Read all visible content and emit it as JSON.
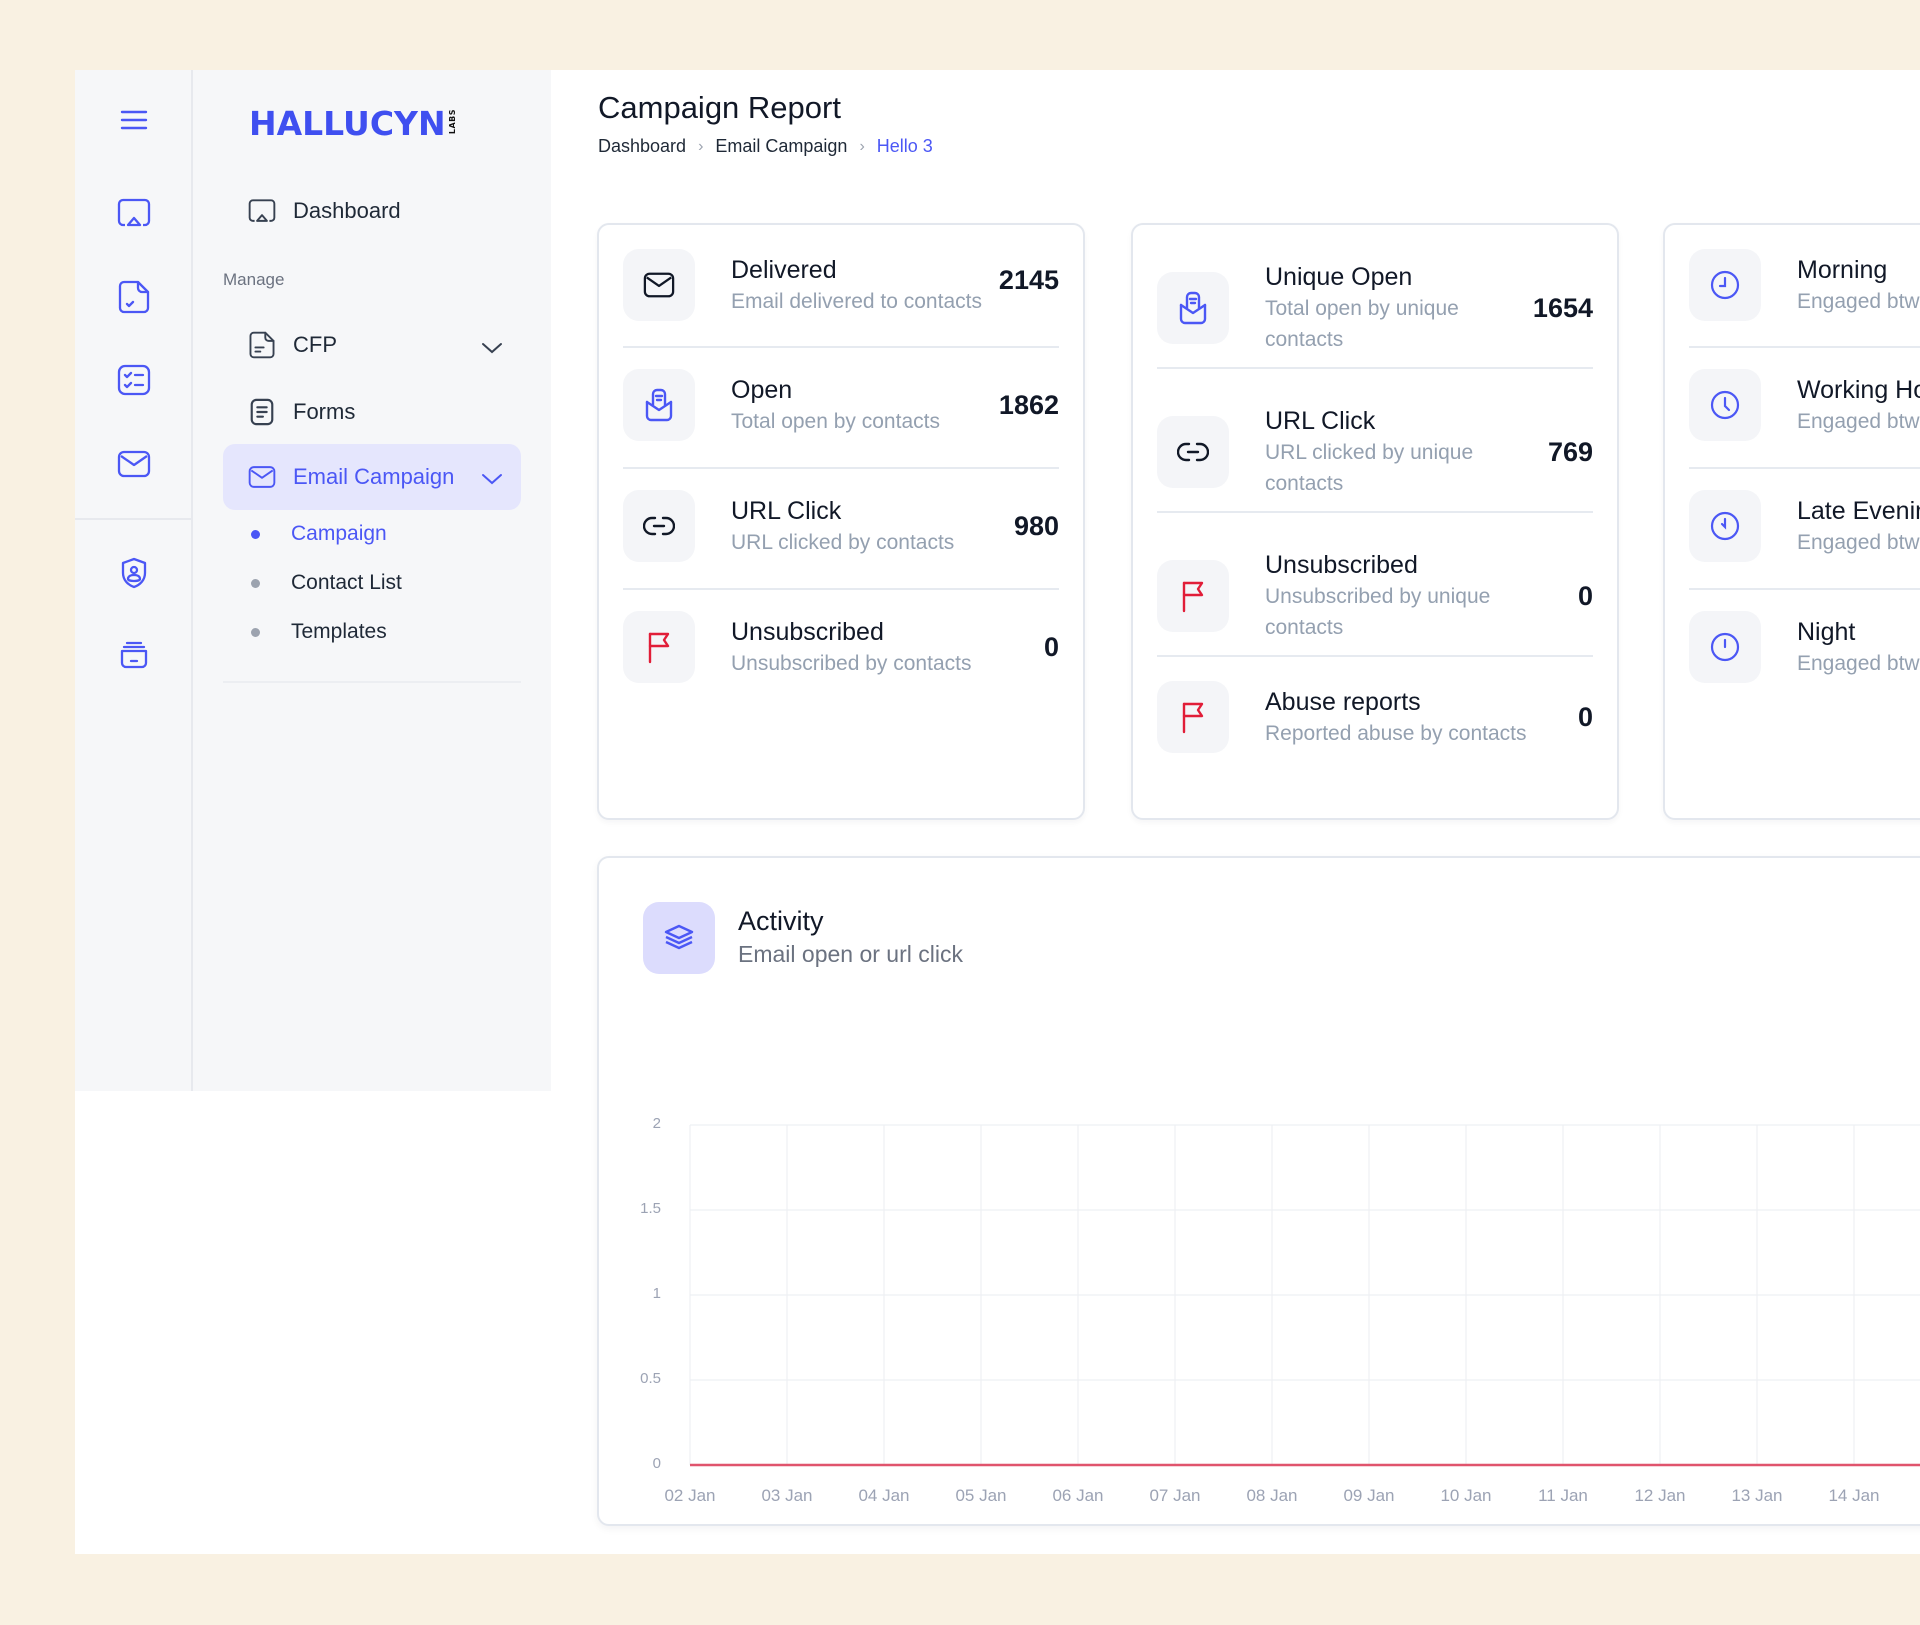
{
  "brand": {
    "name": "HALLUCYN",
    "suffix": "LABS",
    "color": "#4b57f5"
  },
  "rail": {
    "icons": [
      "menu-icon",
      "dashboard-icon",
      "file-check-icon",
      "checklist-icon",
      "mail-icon",
      "shield-user-icon",
      "archive-icon"
    ]
  },
  "sidebar": {
    "dashboard_label": "Dashboard",
    "section_label": "Manage",
    "items": [
      {
        "label": "CFP",
        "icon": "file-text-icon",
        "expandable": true
      },
      {
        "label": "Forms",
        "icon": "form-icon",
        "expandable": false
      },
      {
        "label": "Email Campaign",
        "icon": "mail-icon",
        "expandable": true,
        "active": true
      }
    ],
    "sub_items": [
      {
        "label": "Campaign",
        "active": true
      },
      {
        "label": "Contact List",
        "active": false
      },
      {
        "label": "Templates",
        "active": false
      }
    ]
  },
  "header": {
    "title": "Campaign Report",
    "breadcrumb": [
      "Dashboard",
      "Email Campaign",
      "Hello 3"
    ]
  },
  "cards": [
    {
      "rows": [
        {
          "title": "Delivered",
          "desc": "Email delivered to contacts",
          "value": "2145",
          "icon": "mail-icon",
          "icon_color": "#111827"
        },
        {
          "title": "Open",
          "desc": "Total open by contacts",
          "value": "1862",
          "icon": "mail-open-icon",
          "icon_color": "#4b57f5"
        },
        {
          "title": "URL Click",
          "desc": "URL clicked by contacts",
          "value": "980",
          "icon": "link-icon",
          "icon_color": "#111827"
        },
        {
          "title": "Unsubscribed",
          "desc": "Unsubscribed by contacts",
          "value": "0",
          "icon": "flag-icon",
          "icon_color": "#e11d38"
        }
      ]
    },
    {
      "rows": [
        {
          "title": "Unique Open",
          "desc": "Total open by unique contacts",
          "value": "1654",
          "icon": "mail-open-icon",
          "icon_color": "#4b57f5"
        },
        {
          "title": "URL Click",
          "desc": "URL clicked by unique contacts",
          "value": "769",
          "icon": "link-icon",
          "icon_color": "#111827"
        },
        {
          "title": "Unsubscribed",
          "desc": "Unsubscribed by unique contacts",
          "value": "0",
          "icon": "flag-icon",
          "icon_color": "#e11d38"
        },
        {
          "title": "Abuse reports",
          "desc": "Reported abuse by contacts",
          "value": "0",
          "icon": "flag-icon",
          "icon_color": "#e11d38"
        }
      ]
    },
    {
      "rows": [
        {
          "title": "Morning",
          "desc": "Engaged btw",
          "icon": "clock-icon"
        },
        {
          "title": "Working Ho",
          "desc": "Engaged btw",
          "icon": "clock-icon"
        },
        {
          "title": "Late Evenin",
          "desc": "Engaged btw",
          "icon": "clock-icon"
        },
        {
          "title": "Night",
          "desc": "Engaged btw",
          "icon": "clock-icon"
        }
      ]
    }
  ],
  "activity": {
    "title": "Activity",
    "subtitle": "Email open or url click",
    "icon": "layers-icon"
  },
  "chart_data": {
    "type": "line",
    "title": "Activity",
    "subtitle": "Email open or url click",
    "categories": [
      "02 Jan",
      "03 Jan",
      "04 Jan",
      "05 Jan",
      "06 Jan",
      "07 Jan",
      "08 Jan",
      "09 Jan",
      "10 Jan",
      "11 Jan",
      "12 Jan",
      "13 Jan",
      "14 Jan"
    ],
    "series": [
      {
        "name": "Activity",
        "color": "#e0546d",
        "values": [
          0,
          0,
          0,
          0,
          0,
          0,
          0,
          0,
          0,
          0,
          0,
          0,
          0
        ]
      }
    ],
    "yticks": [
      "2",
      "1.5",
      "1",
      "0.5",
      "0"
    ],
    "ylim": [
      0,
      2
    ],
    "xlabel": "",
    "ylabel": "",
    "grid": true,
    "legend": "none"
  }
}
